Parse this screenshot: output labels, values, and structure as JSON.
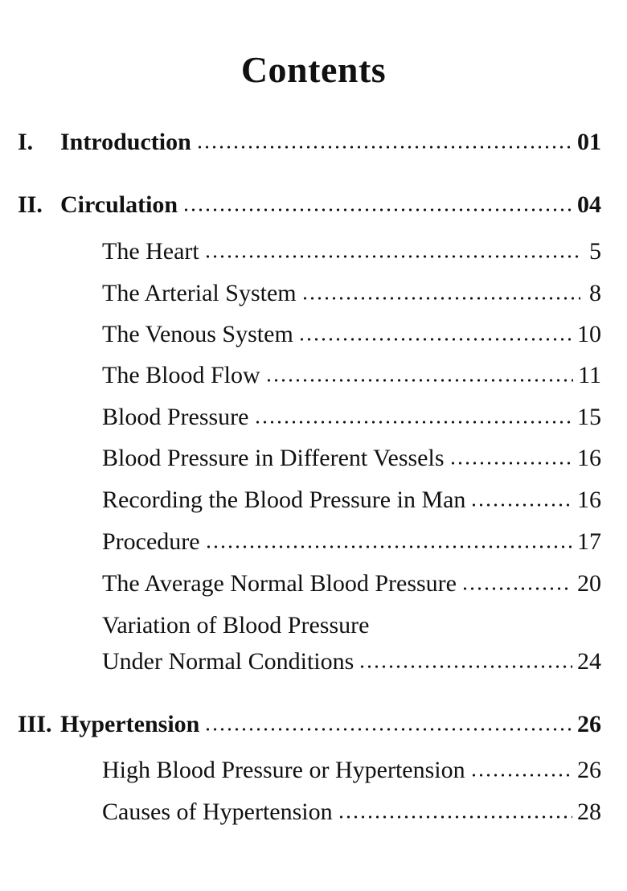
{
  "title": "Contents",
  "entries": [
    {
      "level": "main",
      "numeral": "I.",
      "label": "Introduction",
      "page": "01"
    },
    {
      "level": "main",
      "numeral": "II.",
      "label": "Circulation",
      "page": "04"
    },
    {
      "level": "sub",
      "label": "The Heart",
      "page": "5"
    },
    {
      "level": "sub",
      "label": "The Arterial System",
      "page": "8"
    },
    {
      "level": "sub",
      "label": "The Venous System",
      "page": "10"
    },
    {
      "level": "sub",
      "label": "The Blood Flow",
      "page": "11"
    },
    {
      "level": "sub",
      "label": "Blood Pressure",
      "page": "15"
    },
    {
      "level": "sub",
      "label": "Blood Pressure in Different Vessels",
      "page": "16"
    },
    {
      "level": "sub",
      "label": "Recording the Blood Pressure in Man",
      "page": "16"
    },
    {
      "level": "sub",
      "label": "Procedure",
      "page": "17"
    },
    {
      "level": "sub",
      "label": "The Average Normal Blood Pressure",
      "page": "20"
    },
    {
      "level": "sub",
      "label": "Variation of  Blood Pressure",
      "page": null
    },
    {
      "level": "sub",
      "label": "Under Normal Conditions",
      "page": "24"
    },
    {
      "level": "main",
      "numeral": "III.",
      "label": "Hypertension",
      "page": "26"
    },
    {
      "level": "sub",
      "label": "High Blood Pressure or Hypertension",
      "page": "26"
    },
    {
      "level": "sub",
      "label": "Causes of Hypertension",
      "page": "28"
    }
  ]
}
